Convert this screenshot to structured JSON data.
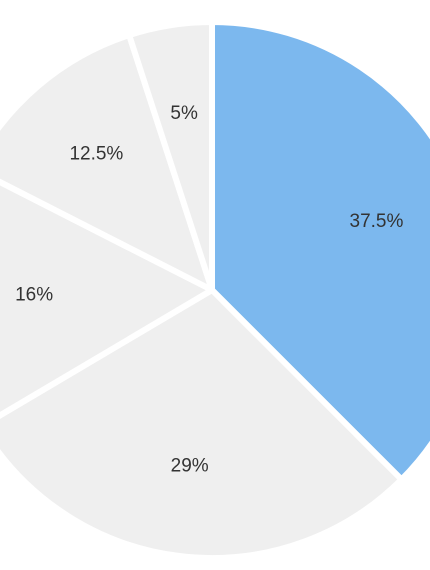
{
  "chart_data": {
    "type": "pie",
    "values": [
      37.5,
      29,
      16,
      12.5,
      5
    ],
    "value_labels": [
      "37.5%",
      "29%",
      "16%",
      "12.5%",
      "5%"
    ],
    "colors": [
      "#7cb8ee",
      "#efefef",
      "#efefef",
      "#efefef",
      "#efefef"
    ]
  }
}
